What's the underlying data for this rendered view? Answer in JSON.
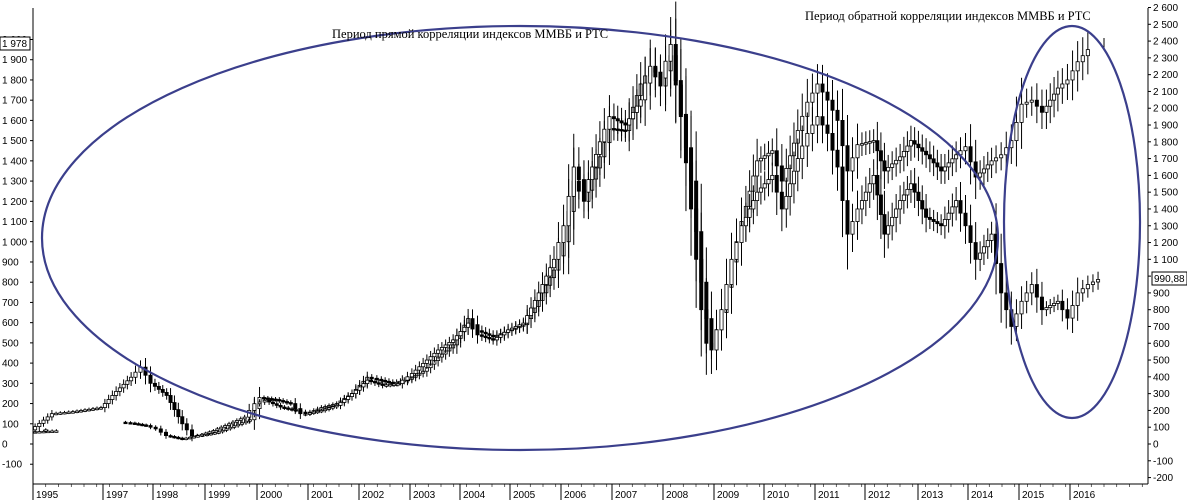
{
  "chart_data": {
    "type": "candlestick",
    "title": "",
    "xlabel": "",
    "ylabel": "",
    "grid": false,
    "x_labels": [
      "1995",
      "1997",
      "1998",
      "1999",
      "2000",
      "2001",
      "2002",
      "2003",
      "2004",
      "2005",
      "2006",
      "2007",
      "2008",
      "2009",
      "2010",
      "2011",
      "2012",
      "2013",
      "2014",
      "2015",
      "2016"
    ],
    "y_left": {
      "ylim": [
        -100,
        2100
      ],
      "ticks": [
        -100,
        0,
        100,
        200,
        300,
        400,
        500,
        600,
        700,
        800,
        900,
        1000,
        1100,
        1200,
        1300,
        1400,
        1500,
        1600,
        1700,
        1800,
        1900,
        2000
      ],
      "tick_labels": [
        "-100",
        "0",
        "100",
        "200",
        "300",
        "400",
        "500",
        "600",
        "700",
        "800",
        "900",
        "1 000",
        "1 100",
        "1 200",
        "1 300",
        "1 400",
        "1 500",
        "1 600",
        "1 700",
        "1 800",
        "1 900",
        "2 000"
      ],
      "last_value": "1 978"
    },
    "y_right": {
      "ylim": [
        -200,
        2600
      ],
      "ticks": [
        -200,
        -100,
        0,
        100,
        200,
        300,
        400,
        500,
        600,
        700,
        800,
        900,
        1000,
        1100,
        1200,
        1300,
        1400,
        1500,
        1600,
        1700,
        1800,
        1900,
        2000,
        2100,
        2200,
        2300,
        2400,
        2500,
        2600
      ],
      "tick_labels": [
        "-200",
        "-100",
        "0",
        "100",
        "200",
        "300",
        "400",
        "500",
        "600",
        "700",
        "800",
        "900",
        "1 000",
        "1 100",
        "1 200",
        "1 300",
        "1 400",
        "1 500",
        "1 600",
        "1 700",
        "1 800",
        "1 900",
        "2 000",
        "2 100",
        "2 200",
        "2 300",
        "2 400",
        "2 500",
        "2 600"
      ],
      "last_value": "990,88"
    },
    "series": [
      {
        "axis": "left",
        "points": [
          [
            1995.0,
            60
          ],
          [
            1995.5,
            65
          ],
          [
            1996.0,
            70
          ],
          [
            1996.3,
            150
          ],
          [
            1996.6,
            160
          ],
          [
            1997.0,
            180
          ],
          [
            1997.3,
            260
          ],
          [
            1997.6,
            330
          ],
          [
            1997.8,
            380
          ],
          [
            1998.0,
            300
          ],
          [
            1998.3,
            240
          ],
          [
            1998.6,
            100
          ],
          [
            1998.8,
            40
          ],
          [
            1999.0,
            45
          ],
          [
            1999.3,
            60
          ],
          [
            1999.6,
            90
          ],
          [
            1999.9,
            120
          ],
          [
            2000.1,
            230
          ],
          [
            2000.4,
            220
          ],
          [
            2000.7,
            200
          ],
          [
            2000.9,
            150
          ],
          [
            2001.0,
            150
          ],
          [
            2001.3,
            180
          ],
          [
            2001.6,
            200
          ],
          [
            2001.9,
            250
          ],
          [
            2002.2,
            330
          ],
          [
            2002.4,
            320
          ],
          [
            2002.7,
            300
          ],
          [
            2003.0,
            320
          ],
          [
            2003.3,
            360
          ],
          [
            2003.6,
            430
          ],
          [
            2003.9,
            490
          ],
          [
            2004.2,
            620
          ],
          [
            2004.4,
            560
          ],
          [
            2004.7,
            530
          ],
          [
            2005.0,
            560
          ],
          [
            2005.3,
            590
          ],
          [
            2005.6,
            710
          ],
          [
            2005.9,
            860
          ],
          [
            2006.1,
            1000
          ],
          [
            2006.3,
            1300
          ],
          [
            2006.5,
            1200
          ],
          [
            2006.8,
            1420
          ],
          [
            2007.0,
            1560
          ],
          [
            2007.3,
            1550
          ],
          [
            2007.6,
            1780
          ],
          [
            2007.8,
            1860
          ],
          [
            2008.0,
            1770
          ],
          [
            2008.2,
            1920
          ],
          [
            2008.4,
            1630
          ],
          [
            2008.6,
            1300
          ],
          [
            2008.8,
            800
          ],
          [
            2008.9,
            620
          ],
          [
            2009.0,
            480
          ],
          [
            2009.2,
            650
          ],
          [
            2009.4,
            900
          ],
          [
            2009.6,
            1100
          ],
          [
            2009.9,
            1400
          ],
          [
            2010.2,
            1450
          ],
          [
            2010.4,
            1300
          ],
          [
            2010.7,
            1550
          ],
          [
            2010.9,
            1690
          ],
          [
            2011.1,
            1780
          ],
          [
            2011.3,
            1700
          ],
          [
            2011.5,
            1600
          ],
          [
            2011.7,
            1350
          ],
          [
            2011.9,
            1480
          ],
          [
            2012.2,
            1500
          ],
          [
            2012.4,
            1350
          ],
          [
            2012.7,
            1420
          ],
          [
            2012.9,
            1500
          ],
          [
            2013.2,
            1430
          ],
          [
            2013.5,
            1350
          ],
          [
            2013.8,
            1430
          ],
          [
            2014.0,
            1470
          ],
          [
            2014.2,
            1320
          ],
          [
            2014.5,
            1400
          ],
          [
            2014.7,
            1430
          ],
          [
            2014.9,
            1500
          ],
          [
            2015.1,
            1680
          ],
          [
            2015.3,
            1700
          ],
          [
            2015.5,
            1640
          ],
          [
            2015.8,
            1760
          ],
          [
            2016.0,
            1800
          ],
          [
            2016.2,
            1890
          ],
          [
            2016.4,
            1950
          ]
        ]
      },
      {
        "axis": "right",
        "points": [
          [
            1997.4,
            130
          ],
          [
            1997.6,
            125
          ],
          [
            1997.9,
            110
          ],
          [
            1998.1,
            90
          ],
          [
            1998.3,
            50
          ],
          [
            1998.6,
            30
          ],
          [
            1998.9,
            50
          ],
          [
            1999.2,
            80
          ],
          [
            1999.5,
            120
          ],
          [
            1999.8,
            160
          ],
          [
            2000.0,
            240
          ],
          [
            2000.2,
            260
          ],
          [
            2000.5,
            220
          ],
          [
            2000.8,
            200
          ],
          [
            2001.0,
            180
          ],
          [
            2001.3,
            200
          ],
          [
            2001.6,
            230
          ],
          [
            2001.9,
            300
          ],
          [
            2002.2,
            380
          ],
          [
            2002.5,
            350
          ],
          [
            2002.8,
            360
          ],
          [
            2003.0,
            400
          ],
          [
            2003.3,
            480
          ],
          [
            2003.6,
            560
          ],
          [
            2003.9,
            620
          ],
          [
            2004.2,
            720
          ],
          [
            2004.4,
            650
          ],
          [
            2004.7,
            620
          ],
          [
            2005.0,
            680
          ],
          [
            2005.3,
            720
          ],
          [
            2005.6,
            900
          ],
          [
            2005.9,
            1100
          ],
          [
            2006.1,
            1300
          ],
          [
            2006.3,
            1650
          ],
          [
            2006.5,
            1500
          ],
          [
            2006.8,
            1800
          ],
          [
            2007.0,
            1950
          ],
          [
            2007.3,
            1900
          ],
          [
            2007.6,
            2050
          ],
          [
            2007.8,
            2250
          ],
          [
            2008.0,
            2180
          ],
          [
            2008.2,
            2380
          ],
          [
            2008.4,
            1950
          ],
          [
            2008.6,
            1400
          ],
          [
            2008.8,
            800
          ],
          [
            2008.9,
            600
          ],
          [
            2009.0,
            560
          ],
          [
            2009.2,
            800
          ],
          [
            2009.4,
            1100
          ],
          [
            2009.6,
            1300
          ],
          [
            2009.9,
            1500
          ],
          [
            2010.2,
            1600
          ],
          [
            2010.4,
            1400
          ],
          [
            2010.7,
            1700
          ],
          [
            2010.9,
            1850
          ],
          [
            2011.1,
            1950
          ],
          [
            2011.3,
            1850
          ],
          [
            2011.5,
            1650
          ],
          [
            2011.7,
            1250
          ],
          [
            2011.9,
            1400
          ],
          [
            2012.2,
            1600
          ],
          [
            2012.4,
            1250
          ],
          [
            2012.7,
            1450
          ],
          [
            2012.9,
            1550
          ],
          [
            2013.2,
            1350
          ],
          [
            2013.5,
            1300
          ],
          [
            2013.8,
            1450
          ],
          [
            2014.0,
            1300
          ],
          [
            2014.2,
            1100
          ],
          [
            2014.5,
            1250
          ],
          [
            2014.7,
            900
          ],
          [
            2014.9,
            700
          ],
          [
            2015.1,
            850
          ],
          [
            2015.3,
            950
          ],
          [
            2015.5,
            800
          ],
          [
            2015.8,
            850
          ],
          [
            2016.0,
            750
          ],
          [
            2016.2,
            900
          ],
          [
            2016.4,
            950
          ],
          [
            2016.6,
            980
          ]
        ]
      }
    ],
    "annotations": [
      "Период прямой корреляции индексов ММВБ и РТС",
      "Период обратной корреляции индексов ММВБ и РТС"
    ]
  }
}
